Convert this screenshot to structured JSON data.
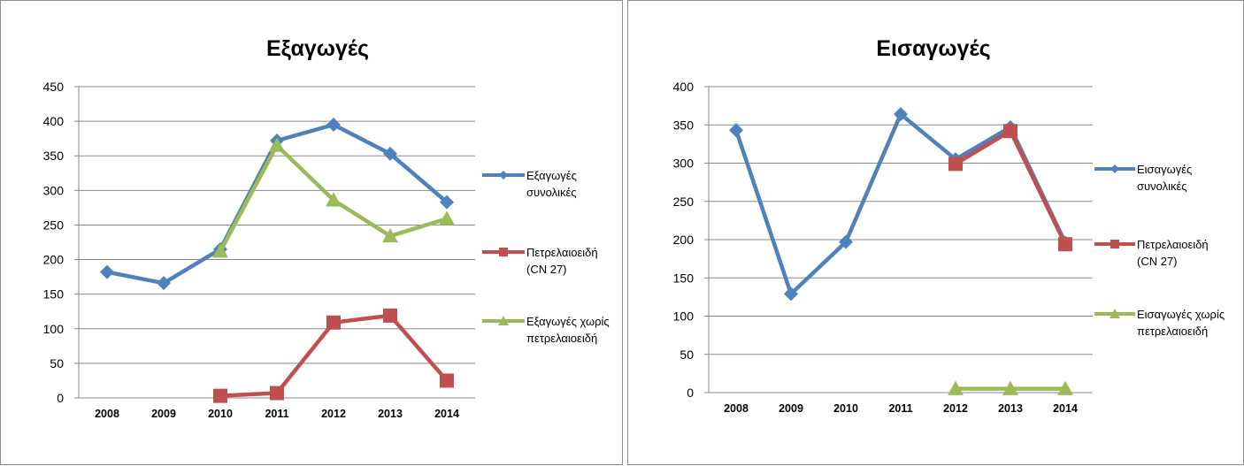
{
  "chart_data": [
    {
      "type": "line",
      "title": "Εξαγωγές",
      "categories": [
        "2008",
        "2009",
        "2010",
        "2011",
        "2012",
        "2013",
        "2014"
      ],
      "ylim": [
        0,
        450
      ],
      "yticks": [
        0,
        50,
        100,
        150,
        200,
        250,
        300,
        350,
        400,
        450
      ],
      "grid": true,
      "legend_position": "right",
      "series": [
        {
          "name": "Εξαγωγές συνολικές",
          "legend_lines": [
            "Εξαγωγές",
            "συνολικές"
          ],
          "color": "#4f81bd",
          "marker": "diamond",
          "values": [
            182,
            166,
            215,
            372,
            395,
            353,
            283
          ]
        },
        {
          "name": "Πετρελαιοειδή (CN 27)",
          "legend_lines": [
            "Πετρελαιοειδή",
            "(CN 27)"
          ],
          "color": "#c0504d",
          "marker": "square",
          "values": [
            null,
            null,
            3,
            7,
            109,
            119,
            25
          ]
        },
        {
          "name": "Εξαγωγές χωρίς πετρελαιοειδή",
          "legend_lines": [
            "Εξαγωγές χωρίς",
            "πετρελαιοειδή"
          ],
          "color": "#9bbb59",
          "marker": "triangle",
          "values": [
            null,
            null,
            212,
            365,
            286,
            234,
            259
          ]
        }
      ]
    },
    {
      "type": "line",
      "title": "Εισαγωγές",
      "categories": [
        "2008",
        "2009",
        "2010",
        "2011",
        "2012",
        "2013",
        "2014"
      ],
      "ylim": [
        0,
        400
      ],
      "yticks": [
        0,
        50,
        100,
        150,
        200,
        250,
        300,
        350,
        400
      ],
      "grid": true,
      "legend_position": "right",
      "series": [
        {
          "name": "Εισαγωγές συνολικές",
          "legend_lines": [
            "Εισαγωγές",
            "συνολικές"
          ],
          "color": "#4f81bd",
          "marker": "diamond",
          "values": [
            343,
            129,
            197,
            364,
            305,
            347,
            196
          ]
        },
        {
          "name": "Πετρελαιοειδή (CN 27)",
          "legend_lines": [
            "Πετρελαιοειδή",
            "(CN 27)"
          ],
          "color": "#c0504d",
          "marker": "square",
          "values": [
            null,
            null,
            null,
            null,
            299,
            342,
            194
          ]
        },
        {
          "name": "Εισαγωγές χωρίς πετρελαιοειδή",
          "legend_lines": [
            "Εισαγωγές χωρίς",
            "πετρελαιοειδή"
          ],
          "color": "#9bbb59",
          "marker": "triangle",
          "values": [
            null,
            null,
            null,
            null,
            5,
            5,
            5
          ]
        }
      ]
    }
  ]
}
